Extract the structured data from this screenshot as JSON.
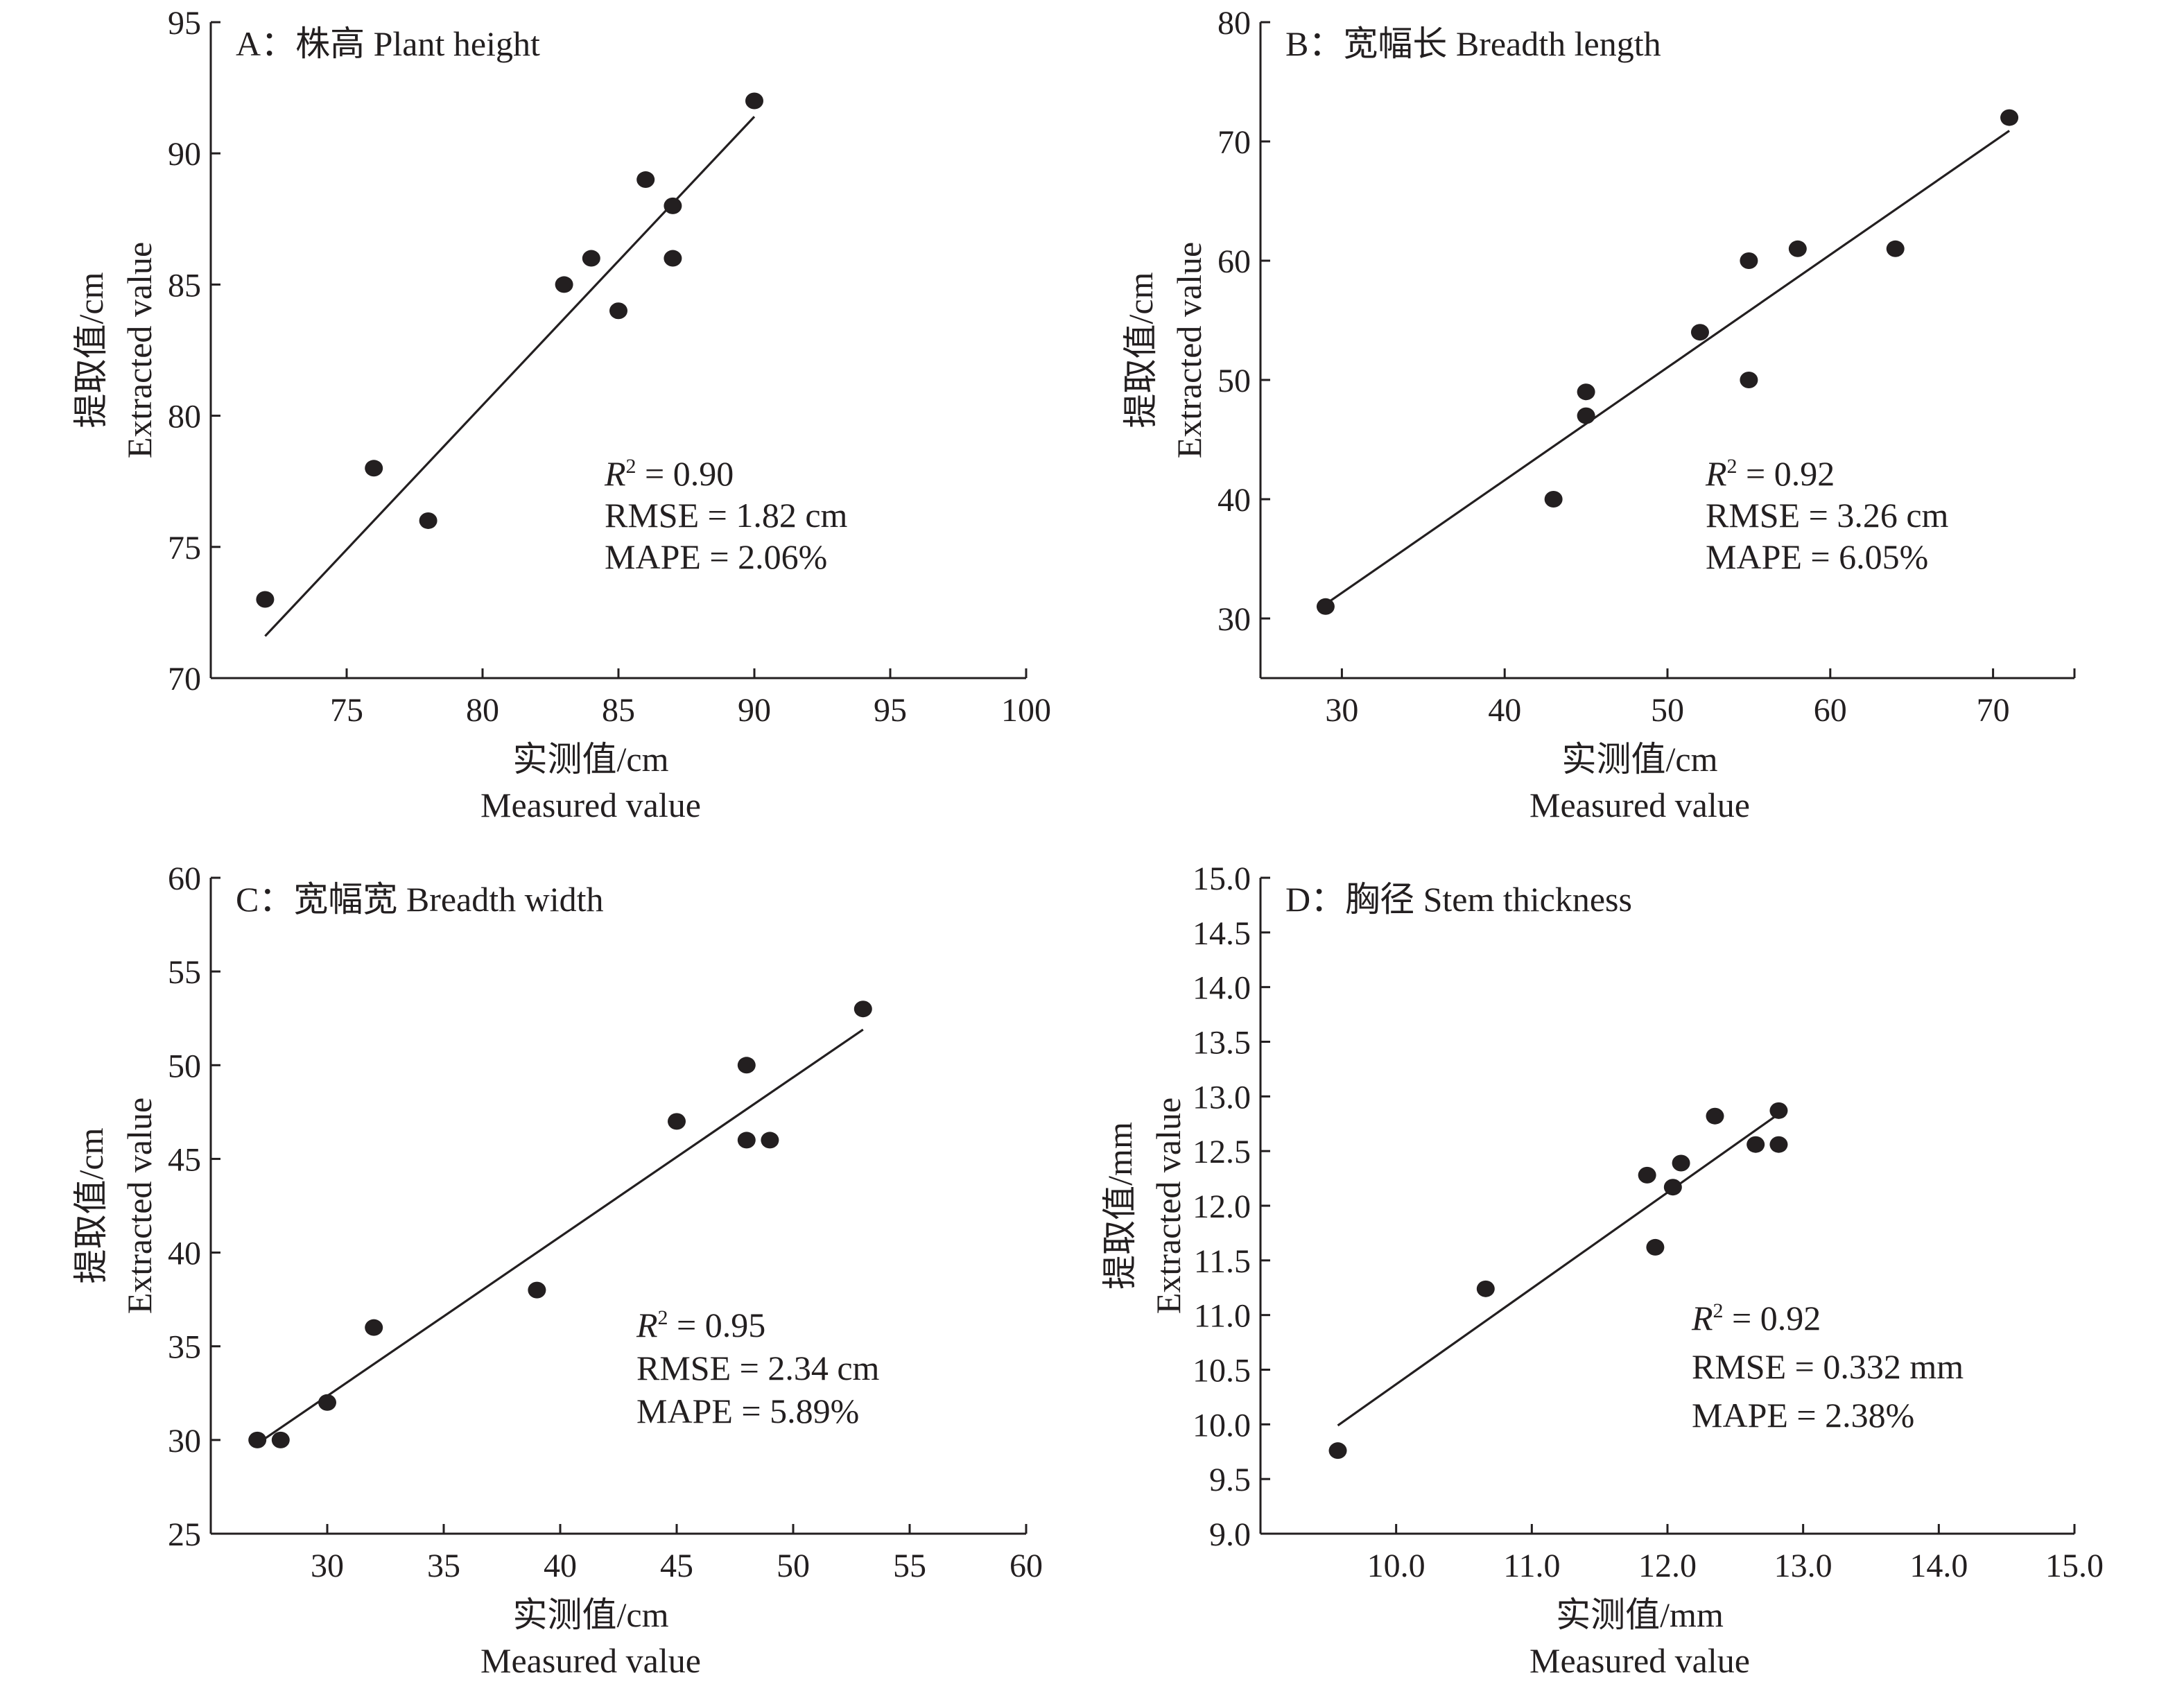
{
  "chart_data": [
    {
      "type": "scatter",
      "panel": "A",
      "title": "A：株高 Plant height",
      "xlabel": "实测值/cm",
      "xlabel2": "Measured value",
      "ylabel": "提取值/cm",
      "ylabel2": "Extracted value",
      "xlim": [
        70,
        100
      ],
      "ylim": [
        70,
        95
      ],
      "xticks": [
        75,
        80,
        85,
        90,
        95,
        100
      ],
      "xtick_labels": [
        "75",
        "80",
        "85",
        "90",
        "95",
        "100"
      ],
      "yticks": [
        70,
        75,
        80,
        85,
        90,
        95
      ],
      "ytick_labels": [
        "70",
        "75",
        "80",
        "85",
        "90",
        "95"
      ],
      "points": [
        [
          72,
          73
        ],
        [
          76,
          78
        ],
        [
          78,
          76
        ],
        [
          83,
          85
        ],
        [
          84,
          86
        ],
        [
          85,
          84
        ],
        [
          86,
          89
        ],
        [
          87,
          88
        ],
        [
          87,
          86
        ],
        [
          90,
          92
        ]
      ],
      "fit_line": [
        [
          72,
          71.6
        ],
        [
          90,
          91.4
        ]
      ],
      "stats": {
        "r2_label": "R",
        "r2_sup": "2",
        "r2_value": " = 0.90",
        "rmse": "RMSE = 1.82 cm",
        "mape": "MAPE = 2.06%"
      },
      "grid": false
    },
    {
      "type": "scatter",
      "panel": "B",
      "title": "B：宽幅长 Breadth length",
      "xlabel": "实测值/cm",
      "xlabel2": "Measured value",
      "ylabel": "提取值/cm",
      "ylabel2": "Extracted value",
      "xlim": [
        25,
        75
      ],
      "ylim": [
        25,
        80
      ],
      "xticks": [
        30,
        40,
        50,
        60,
        70,
        75
      ],
      "xtick_labels": [
        "30",
        "40",
        "50",
        "60",
        "70",
        ""
      ],
      "yticks": [
        30,
        40,
        50,
        60,
        70,
        80
      ],
      "ytick_labels": [
        "30",
        "40",
        "50",
        "60",
        "70",
        "80"
      ],
      "points": [
        [
          29,
          31
        ],
        [
          43,
          40
        ],
        [
          45,
          49
        ],
        [
          45,
          47
        ],
        [
          52,
          54
        ],
        [
          55,
          60
        ],
        [
          55,
          50
        ],
        [
          58,
          61
        ],
        [
          64,
          61
        ],
        [
          71,
          72
        ]
      ],
      "fit_line": [
        [
          29,
          31.2
        ],
        [
          71,
          70.9
        ]
      ],
      "stats": {
        "r2_label": "R",
        "r2_sup": "2",
        "r2_value": " = 0.92",
        "rmse": "RMSE = 3.26 cm",
        "mape": "MAPE = 6.05%"
      },
      "grid": false
    },
    {
      "type": "scatter",
      "panel": "C",
      "title": "C：宽幅宽 Breadth width",
      "xlabel": "实测值/cm",
      "xlabel2": "Measured value",
      "ylabel": "提取值/cm",
      "ylabel2": "Extracted value",
      "xlim": [
        25,
        60
      ],
      "ylim": [
        25,
        60
      ],
      "xticks": [
        30,
        35,
        40,
        45,
        50,
        55,
        60
      ],
      "xtick_labels": [
        "30",
        "35",
        "40",
        "45",
        "50",
        "55",
        "60"
      ],
      "yticks": [
        25,
        30,
        35,
        40,
        45,
        50,
        55,
        60
      ],
      "ytick_labels": [
        "25",
        "30",
        "35",
        "40",
        "45",
        "50",
        "55",
        "60"
      ],
      "points": [
        [
          27,
          30
        ],
        [
          28,
          30
        ],
        [
          30,
          32
        ],
        [
          32,
          36
        ],
        [
          39,
          38
        ],
        [
          45,
          47
        ],
        [
          48,
          50
        ],
        [
          48,
          46
        ],
        [
          49,
          46
        ],
        [
          53,
          53
        ]
      ],
      "fit_line": [
        [
          27,
          29.8
        ],
        [
          53,
          51.9
        ]
      ],
      "stats": {
        "r2_label": "R",
        "r2_sup": "2",
        "r2_value": " = 0.95",
        "rmse": "RMSE = 2.34 cm",
        "mape": "MAPE = 5.89%"
      },
      "grid": false
    },
    {
      "type": "scatter",
      "panel": "D",
      "title": "D：胸径 Stem thickness",
      "xlabel": "实测值/mm",
      "xlabel2": "Measured value",
      "ylabel": "提取值/mm",
      "ylabel2": "Extracted value",
      "xlim": [
        9.0,
        15.0
      ],
      "ylim": [
        9.0,
        15.0
      ],
      "xticks": [
        10.0,
        11.0,
        12.0,
        13.0,
        14.0,
        15.0
      ],
      "xtick_labels": [
        "10.0",
        "11.0",
        "12.0",
        "13.0",
        "14.0",
        "15.0"
      ],
      "yticks": [
        9.0,
        9.5,
        10.0,
        10.5,
        11.0,
        11.5,
        12.0,
        12.5,
        13.0,
        13.5,
        14.0,
        14.5,
        15.0
      ],
      "ytick_labels": [
        "9.0",
        "9.5",
        "10.0",
        "10.5",
        "11.0",
        "11.5",
        "12.0",
        "12.5",
        "13.0",
        "13.5",
        "14.0",
        "14.5",
        "15.0"
      ],
      "points": [
        [
          9.57,
          9.76
        ],
        [
          10.66,
          11.24
        ],
        [
          11.85,
          12.28
        ],
        [
          11.91,
          11.62
        ],
        [
          12.04,
          12.17
        ],
        [
          12.1,
          12.39
        ],
        [
          12.35,
          12.82
        ],
        [
          12.65,
          12.56
        ],
        [
          12.82,
          12.87
        ],
        [
          12.82,
          12.56
        ]
      ],
      "fit_line": [
        [
          9.57,
          9.99
        ],
        [
          12.82,
          12.84
        ]
      ],
      "stats": {
        "r2_label": "R",
        "r2_sup": "2",
        "r2_value": " = 0.92",
        "rmse": "RMSE = 0.332 mm",
        "mape": "MAPE = 2.38%"
      },
      "grid": false
    }
  ]
}
